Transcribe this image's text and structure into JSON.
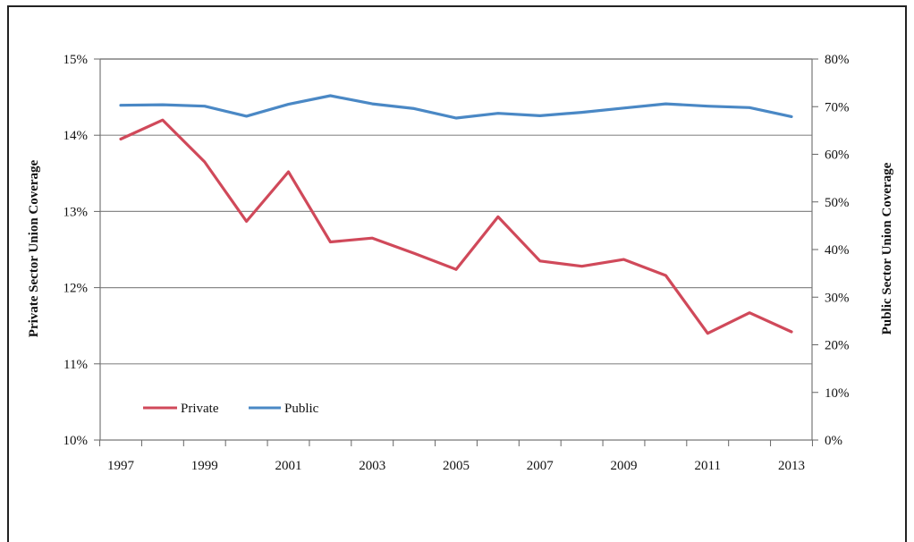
{
  "chart_data": {
    "type": "line",
    "title": "",
    "xlabel": "",
    "ylabel_left": "Private Sector Union Coverage",
    "ylabel_right": "Public Sector Union Coverage",
    "x": [
      1997,
      1998,
      1999,
      2000,
      2001,
      2002,
      2003,
      2004,
      2005,
      2006,
      2007,
      2008,
      2009,
      2010,
      2011,
      2012,
      2013
    ],
    "x_tick_labels": [
      "1997",
      "1999",
      "2001",
      "2003",
      "2005",
      "2007",
      "2009",
      "2011",
      "2013"
    ],
    "y_left_ticks": [
      "10%",
      "11%",
      "12%",
      "13%",
      "14%",
      "15%"
    ],
    "y_left_lim": [
      10,
      15
    ],
    "y_right_ticks": [
      "0%",
      "10%",
      "20%",
      "30%",
      "40%",
      "50%",
      "60%",
      "70%",
      "80%"
    ],
    "y_right_lim": [
      0,
      80
    ],
    "grid": true,
    "legend_position": "bottom-left",
    "series": [
      {
        "name": "Private",
        "axis": "left",
        "color": "#d0495a",
        "values": [
          13.95,
          14.2,
          13.65,
          12.87,
          13.52,
          12.6,
          12.65,
          12.45,
          12.24,
          12.93,
          12.35,
          12.28,
          12.37,
          12.16,
          11.4,
          11.67,
          11.42
        ]
      },
      {
        "name": "Public",
        "axis": "right",
        "color": "#4a88c5",
        "values": [
          70.3,
          70.4,
          70.1,
          68.0,
          70.5,
          72.3,
          70.6,
          69.6,
          67.6,
          68.6,
          68.1,
          68.8,
          69.7,
          70.6,
          70.1,
          69.8,
          67.9
        ]
      }
    ]
  }
}
